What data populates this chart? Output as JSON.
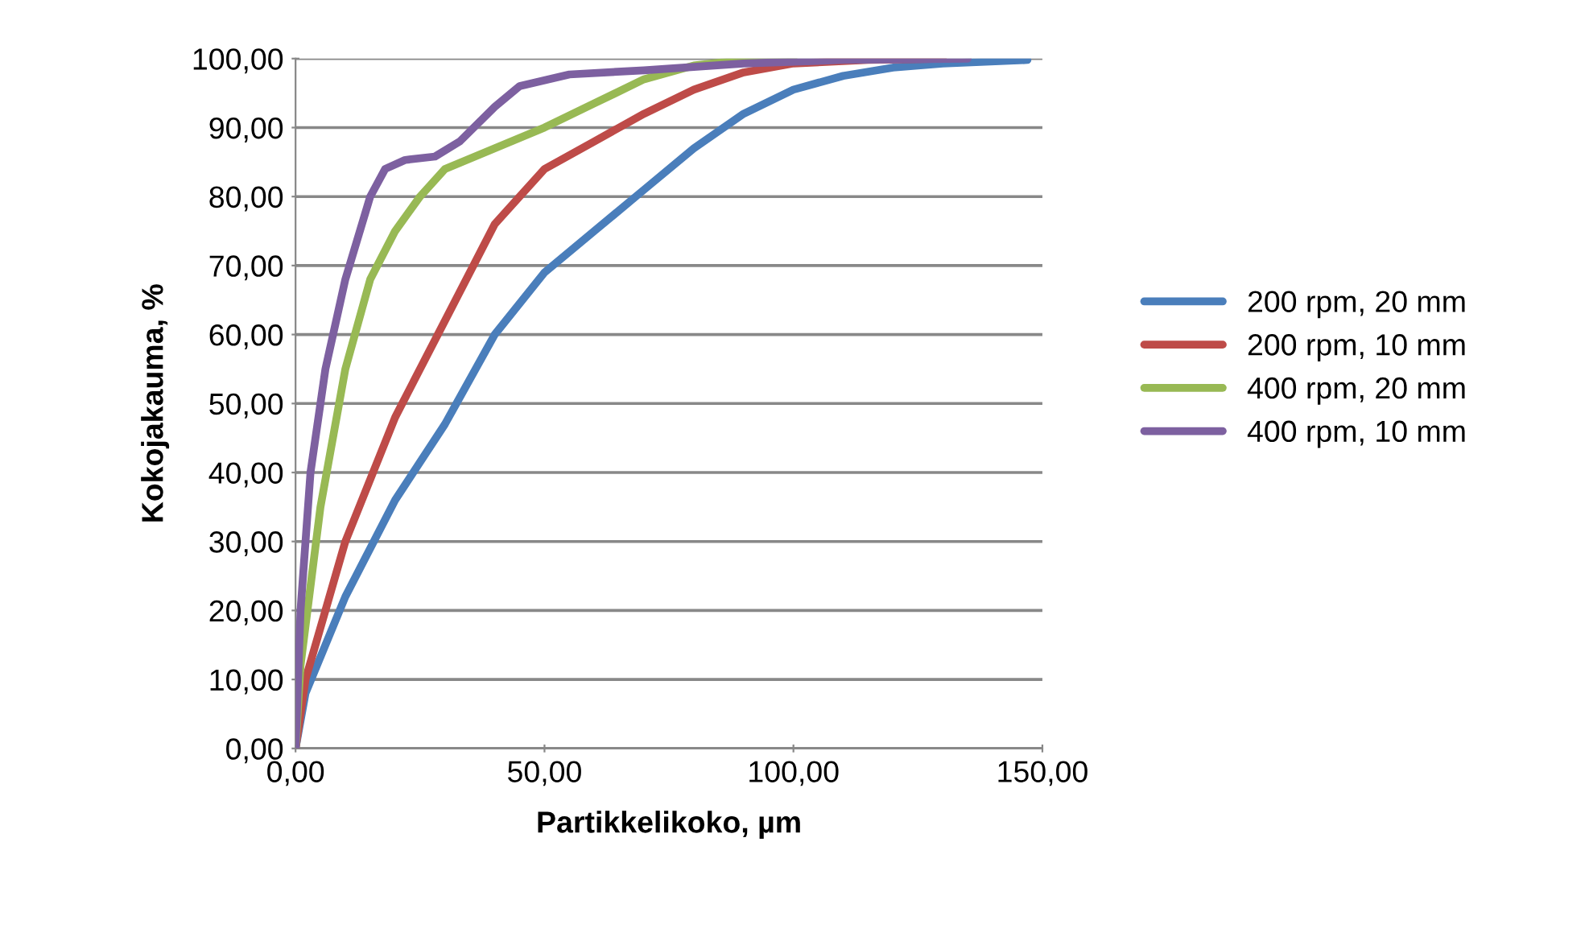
{
  "chart_data": {
    "type": "line",
    "xlabel": "Partikkelikoko, µm",
    "ylabel": "Kokojakauma, %",
    "xlim": [
      0,
      150
    ],
    "ylim": [
      0,
      100
    ],
    "xticks": [
      {
        "value": 0,
        "label": "0,00"
      },
      {
        "value": 50,
        "label": "50,00"
      },
      {
        "value": 100,
        "label": "100,00"
      },
      {
        "value": 150,
        "label": "150,00"
      }
    ],
    "yticks": [
      {
        "value": 0,
        "label": "0,00"
      },
      {
        "value": 10,
        "label": "10,00"
      },
      {
        "value": 20,
        "label": "20,00"
      },
      {
        "value": 30,
        "label": "30,00"
      },
      {
        "value": 40,
        "label": "40,00"
      },
      {
        "value": 50,
        "label": "50,00"
      },
      {
        "value": 60,
        "label": "60,00"
      },
      {
        "value": 70,
        "label": "70,00"
      },
      {
        "value": 80,
        "label": "80,00"
      },
      {
        "value": 90,
        "label": "90,00"
      },
      {
        "value": 100,
        "label": "100,00"
      }
    ],
    "grid": "y",
    "legend": "right",
    "marker": "none",
    "line_style": "solid",
    "series": [
      {
        "name": "200 rpm, 20 mm",
        "color": "#4a7ebb",
        "x": [
          0,
          2,
          10,
          20,
          30,
          40,
          50,
          60,
          70,
          80,
          90,
          100,
          110,
          120,
          130,
          147
        ],
        "values": [
          0,
          8,
          22,
          36,
          47,
          60,
          69,
          75,
          81,
          87,
          92,
          95.5,
          97.5,
          98.7,
          99.3,
          99.8
        ]
      },
      {
        "name": "200 rpm, 10 mm",
        "color": "#be4b48",
        "x": [
          0,
          2,
          10,
          20,
          30,
          40,
          50,
          60,
          70,
          80,
          90,
          100,
          115,
          130
        ],
        "values": [
          0,
          10,
          30,
          48,
          62,
          76,
          84,
          88,
          92,
          95.5,
          98,
          99.3,
          99.8,
          100
        ]
      },
      {
        "name": "400 rpm, 20 mm",
        "color": "#98b954",
        "x": [
          0,
          1,
          5,
          10,
          15,
          20,
          25,
          30,
          40,
          50,
          60,
          70,
          80,
          90,
          100
        ],
        "values": [
          0,
          12,
          35,
          55,
          68,
          75,
          80,
          84,
          87,
          90,
          93.5,
          97,
          99,
          99.8,
          100
        ]
      },
      {
        "name": "400 rpm, 10 mm",
        "color": "#7d60a0",
        "x": [
          0,
          1,
          3,
          6,
          10,
          15,
          18,
          22,
          28,
          33,
          40,
          45,
          55,
          70,
          90,
          110,
          135
        ],
        "values": [
          0,
          20,
          40,
          55,
          68,
          80,
          84,
          85.3,
          85.8,
          88,
          93,
          96,
          97.7,
          98.3,
          99.3,
          99.8,
          100
        ]
      }
    ]
  }
}
